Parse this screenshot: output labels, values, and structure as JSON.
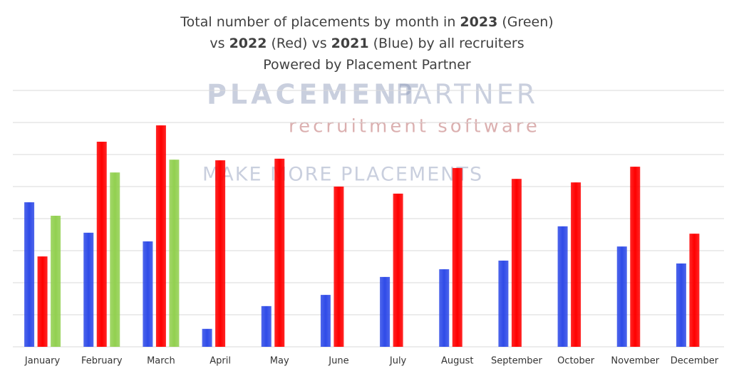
{
  "chart_data": {
    "type": "bar",
    "title": [
      [
        "Total number of placements by month in ",
        "2023",
        " (Green)"
      ],
      [
        "vs ",
        "2022",
        " (Red) vs ",
        "2021",
        " (Blue) by all recruiters"
      ],
      [
        "Powered by Placement Partner"
      ]
    ],
    "watermark": [
      "PLACEMENT",
      "PARTNER",
      "recruitment software",
      "MAKE MORE PLACEMENTS"
    ],
    "categories": [
      "January",
      "February",
      "March",
      "April",
      "May",
      "June",
      "July",
      "August",
      "September",
      "October",
      "November",
      "December"
    ],
    "series": [
      {
        "name": "2021",
        "color": "#2f4be8",
        "values": [
          4.51,
          3.56,
          3.29,
          0.56,
          1.27,
          1.62,
          2.18,
          2.42,
          2.69,
          3.76,
          3.13,
          2.6
        ]
      },
      {
        "name": "2022",
        "color": "#ff0000",
        "values": [
          2.82,
          6.4,
          6.91,
          5.82,
          5.87,
          5.0,
          4.78,
          5.58,
          5.24,
          5.13,
          5.62,
          3.53
        ]
      },
      {
        "name": "2023",
        "color": "#92d050",
        "values": [
          4.09,
          5.44,
          5.84,
          null,
          null,
          null,
          null,
          null,
          null,
          null,
          null,
          null
        ]
      }
    ],
    "ylim": [
      0,
      8
    ],
    "yticks": [
      0,
      1,
      2,
      3,
      4,
      5,
      6,
      7,
      8
    ],
    "grid": true
  }
}
